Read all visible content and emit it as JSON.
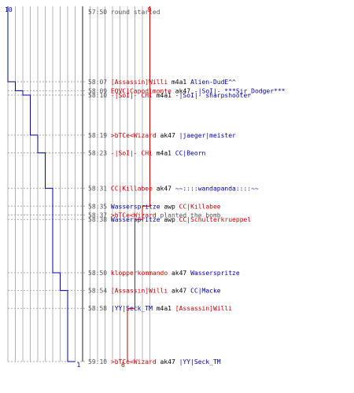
{
  "chart_data": {
    "type": "line",
    "teams": [
      {
        "name": "blue",
        "color": "#0000aa",
        "start_count": 10,
        "end_count": 1
      },
      {
        "name": "red",
        "color": "#cc0000",
        "start_count": 9,
        "end_count": 6
      }
    ],
    "start_time": "57:50",
    "start_text": "round started",
    "events": [
      {
        "time": "58:07",
        "killer": "[Assassin]Willi",
        "killer_team": "red",
        "weapon": "m4a1",
        "victim": "Alien-DudE^^",
        "victim_team": "blue"
      },
      {
        "time": "58:09",
        "killer": "EQVC]Capodimonte",
        "killer_team": "red",
        "weapon": "ak47",
        "victim": "-|SoI|- ***Sir_Dodger***",
        "victim_team": "blue"
      },
      {
        "time": "58:10",
        "killer": "-|SoI|- CHi",
        "killer_team": "red",
        "weapon": "m4a1",
        "victim": "-|SoI|- sharpshooter",
        "victim_team": "blue"
      },
      {
        "time": "58:19",
        "killer": ">bTCe<Wizard",
        "killer_team": "red",
        "weapon": "ak47",
        "victim": "|jaeger|meister",
        "victim_team": "blue"
      },
      {
        "time": "58:23",
        "killer": "-|SoI|- CHi",
        "killer_team": "red",
        "weapon": "m4a1",
        "victim": "CC|Beorn",
        "victim_team": "blue"
      },
      {
        "time": "58:31",
        "killer": "CC|Killabee",
        "killer_team": "red",
        "weapon": "ak47",
        "victim": "~~::::wandapanda::::~~",
        "victim_team": "blue"
      },
      {
        "time": "58:35",
        "killer": "Wasserspritze",
        "killer_team": "blue",
        "weapon": "awp",
        "victim": "CC|Killabee",
        "victim_team": "red"
      },
      {
        "time": "58:37",
        "killer": ">bTCe<Wizard",
        "killer_team": "red",
        "weapon": "planted the bomb",
        "victim": "",
        "victim_team": ""
      },
      {
        "time": "58:38",
        "killer": "Wasserspritze",
        "killer_team": "blue",
        "weapon": "awp",
        "victim": "CC|Schulterkrueppel",
        "victim_team": "red"
      },
      {
        "time": "58:50",
        "killer": "klopperkommando",
        "killer_team": "red",
        "weapon": "ak47",
        "victim": "Wasserspritze",
        "victim_team": "blue"
      },
      {
        "time": "58:54",
        "killer": "[Assassin]Willi",
        "killer_team": "red",
        "weapon": "ak47",
        "victim": "CC|Macke",
        "victim_team": "blue"
      },
      {
        "time": "58:58",
        "killer": "|YY|Seck_TM",
        "killer_team": "blue",
        "weapon": "m4a1",
        "victim": "[Assassin]Willi",
        "victim_team": "red"
      },
      {
        "time": "59:10",
        "killer": ">bTCe<Wizard",
        "killer_team": "red",
        "weapon": "ak47",
        "victim": "|YY|Seck_TM",
        "victim_team": "blue"
      }
    ]
  },
  "colors": {
    "blue": "#0000aa",
    "red": "#cc0000",
    "grid": "#b4b4b4",
    "dashed": "#aaaaaa",
    "text": "#000000",
    "time": "#555555"
  }
}
